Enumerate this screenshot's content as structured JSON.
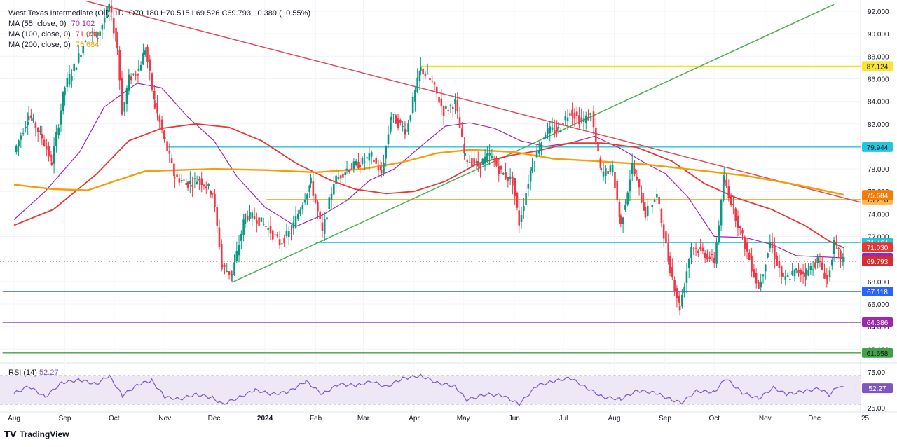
{
  "legend": {
    "symbol": "West Texas Intermediate (Oil), 1D",
    "ohlc": "O70.180 H70.515 L69.526 C69.793 −0.389 (−0.55%)",
    "ma55": {
      "label": "MA (55, close, 0)",
      "value": "70.102",
      "color": "#9c27b0"
    },
    "ma100": {
      "label": "MA (100, close, 0)",
      "value": "71.030",
      "color": "#e53935"
    },
    "ma200": {
      "label": "MA (200, close, 0)",
      "value": "75.684",
      "color": "#f59e0b"
    }
  },
  "rsi_legend": {
    "label": "RSI (14)",
    "value": "52.27"
  },
  "branding": {
    "name": "TradingView"
  },
  "chart_data": [
    {
      "type": "line",
      "title": "West Texas Intermediate (Oil)",
      "ylim": [
        61.0,
        93.0
      ],
      "y_ticks": [
        "92.000",
        "90.000",
        "88.000",
        "86.000",
        "84.000",
        "82.000",
        "80.000",
        "78.000",
        "76.000",
        "74.000",
        "72.000",
        "70.000",
        "68.000",
        "66.000",
        "64.000",
        "62.000"
      ],
      "x_ticks": [
        "Aug",
        "Sep",
        "Oct",
        "Nov",
        "Dec",
        "2024",
        "Feb",
        "Mar",
        "Apr",
        "May",
        "Jun",
        "Jul",
        "Aug",
        "Sep",
        "Oct",
        "Nov",
        "Dec",
        "25"
      ],
      "price_points": [
        [
          "2023-08-01",
          79.5
        ],
        [
          "2023-08-10",
          82.8
        ],
        [
          "2023-08-18",
          80.8
        ],
        [
          "2023-08-24",
          78.6
        ],
        [
          "2023-09-01",
          85.3
        ],
        [
          "2023-09-08",
          87.4
        ],
        [
          "2023-09-15",
          90.2
        ],
        [
          "2023-09-21",
          89.8
        ],
        [
          "2023-09-28",
          92.5
        ],
        [
          "2023-10-03",
          88.8
        ],
        [
          "2023-10-06",
          82.8
        ],
        [
          "2023-10-10",
          86.0
        ],
        [
          "2023-10-16",
          86.8
        ],
        [
          "2023-10-20",
          88.7
        ],
        [
          "2023-10-26",
          83.6
        ],
        [
          "2023-11-01",
          80.4
        ],
        [
          "2023-11-07",
          77.3
        ],
        [
          "2023-11-15",
          76.7
        ],
        [
          "2023-11-22",
          77.1
        ],
        [
          "2023-11-30",
          75.9
        ],
        [
          "2023-12-06",
          69.3
        ],
        [
          "2023-12-12",
          68.6
        ],
        [
          "2023-12-20",
          73.9
        ],
        [
          "2023-12-27",
          73.6
        ],
        [
          "2024-01-03",
          72.7
        ],
        [
          "2024-01-10",
          71.4
        ],
        [
          "2024-01-17",
          72.5
        ],
        [
          "2024-01-24",
          75.1
        ],
        [
          "2024-01-29",
          76.8
        ],
        [
          "2024-02-05",
          72.3
        ],
        [
          "2024-02-12",
          76.9
        ],
        [
          "2024-02-20",
          78.0
        ],
        [
          "2024-02-28",
          78.5
        ],
        [
          "2024-03-06",
          79.1
        ],
        [
          "2024-03-12",
          77.6
        ],
        [
          "2024-03-18",
          82.7
        ],
        [
          "2024-03-27",
          81.4
        ],
        [
          "2024-04-05",
          86.9
        ],
        [
          "2024-04-12",
          85.6
        ],
        [
          "2024-04-19",
          83.1
        ],
        [
          "2024-04-26",
          83.9
        ],
        [
          "2024-05-02",
          79.0
        ],
        [
          "2024-05-10",
          78.3
        ],
        [
          "2024-05-17",
          79.2
        ],
        [
          "2024-05-24",
          77.7
        ],
        [
          "2024-05-31",
          76.9
        ],
        [
          "2024-06-04",
          73.2
        ],
        [
          "2024-06-12",
          78.5
        ],
        [
          "2024-06-20",
          81.3
        ],
        [
          "2024-06-28",
          81.5
        ],
        [
          "2024-07-05",
          83.2
        ],
        [
          "2024-07-12",
          82.2
        ],
        [
          "2024-07-18",
          82.8
        ],
        [
          "2024-07-24",
          77.6
        ],
        [
          "2024-07-31",
          78.0
        ],
        [
          "2024-08-05",
          73.0
        ],
        [
          "2024-08-12",
          78.3
        ],
        [
          "2024-08-20",
          74.0
        ],
        [
          "2024-08-27",
          75.6
        ],
        [
          "2024-09-04",
          69.2
        ],
        [
          "2024-09-10",
          65.7
        ],
        [
          "2024-09-17",
          71.2
        ],
        [
          "2024-09-24",
          70.6
        ],
        [
          "2024-10-01",
          69.8
        ],
        [
          "2024-10-07",
          77.1
        ],
        [
          "2024-10-14",
          73.8
        ],
        [
          "2024-10-21",
          70.6
        ],
        [
          "2024-10-28",
          67.4
        ],
        [
          "2024-11-04",
          71.5
        ],
        [
          "2024-11-12",
          68.1
        ],
        [
          "2024-11-20",
          68.9
        ],
        [
          "2024-11-26",
          68.8
        ],
        [
          "2024-12-03",
          69.9
        ],
        [
          "2024-12-09",
          68.1
        ],
        [
          "2024-12-13",
          71.3
        ],
        [
          "2024-12-17",
          70.2
        ],
        [
          "2024-12-19",
          69.8
        ]
      ],
      "ma_series": [
        {
          "name": "MA (55, close, 0)",
          "color": "#9c27b0",
          "points": [
            [
              "2023-08-01",
              73.5
            ],
            [
              "2023-08-20",
              76.0
            ],
            [
              "2023-09-10",
              79.5
            ],
            [
              "2023-09-25",
              83.5
            ],
            [
              "2023-10-15",
              85.6
            ],
            [
              "2023-10-30",
              85.2
            ],
            [
              "2023-11-15",
              82.6
            ],
            [
              "2023-12-01",
              80.5
            ],
            [
              "2023-12-15",
              77.3
            ],
            [
              "2024-01-01",
              74.6
            ],
            [
              "2024-01-20",
              72.9
            ],
            [
              "2024-02-05",
              73.9
            ],
            [
              "2024-02-20",
              75.2
            ],
            [
              "2024-03-05",
              77.0
            ],
            [
              "2024-03-20",
              78.0
            ],
            [
              "2024-04-05",
              80.0
            ],
            [
              "2024-04-20",
              81.8
            ],
            [
              "2024-05-05",
              82.1
            ],
            [
              "2024-05-20",
              81.6
            ],
            [
              "2024-06-05",
              80.5
            ],
            [
              "2024-06-20",
              80.0
            ],
            [
              "2024-07-05",
              80.3
            ],
            [
              "2024-07-20",
              80.9
            ],
            [
              "2024-08-05",
              79.8
            ],
            [
              "2024-08-20",
              78.5
            ],
            [
              "2024-09-01",
              77.6
            ],
            [
              "2024-09-15",
              75.5
            ],
            [
              "2024-10-01",
              72.0
            ],
            [
              "2024-10-20",
              71.9
            ],
            [
              "2024-11-05",
              71.3
            ],
            [
              "2024-11-20",
              70.3
            ],
            [
              "2024-12-05",
              70.2
            ],
            [
              "2024-12-19",
              70.1
            ]
          ]
        },
        {
          "name": "MA (100, close, 0)",
          "color": "#e53935",
          "points": [
            [
              "2023-08-01",
              73.0
            ],
            [
              "2023-08-25",
              74.4
            ],
            [
              "2023-09-20",
              77.5
            ],
            [
              "2023-10-10",
              80.5
            ],
            [
              "2023-10-30",
              81.6
            ],
            [
              "2023-11-20",
              82.0
            ],
            [
              "2023-12-10",
              81.7
            ],
            [
              "2023-12-30",
              80.5
            ],
            [
              "2024-01-20",
              78.5
            ],
            [
              "2024-02-10",
              77.0
            ],
            [
              "2024-02-25",
              76.2
            ],
            [
              "2024-03-15",
              75.8
            ],
            [
              "2024-04-01",
              76.0
            ],
            [
              "2024-04-20",
              76.9
            ],
            [
              "2024-05-10",
              78.5
            ],
            [
              "2024-05-30",
              79.2
            ],
            [
              "2024-06-15",
              79.6
            ],
            [
              "2024-07-05",
              80.3
            ],
            [
              "2024-07-25",
              80.3
            ],
            [
              "2024-08-15",
              79.9
            ],
            [
              "2024-09-05",
              78.7
            ],
            [
              "2024-09-25",
              76.7
            ],
            [
              "2024-10-15",
              75.4
            ],
            [
              "2024-11-05",
              74.4
            ],
            [
              "2024-11-25",
              73.0
            ],
            [
              "2024-12-10",
              71.6
            ],
            [
              "2024-12-19",
              71.0
            ]
          ]
        },
        {
          "name": "MA (200, close, 0)",
          "color": "#f59e0b",
          "points": [
            [
              "2023-08-01",
              76.6
            ],
            [
              "2023-08-25",
              76.2
            ],
            [
              "2023-09-15",
              76.1
            ],
            [
              "2023-10-01",
              76.9
            ],
            [
              "2023-10-20",
              77.8
            ],
            [
              "2023-11-10",
              77.9
            ],
            [
              "2023-12-01",
              78.0
            ],
            [
              "2024-01-01",
              77.9
            ],
            [
              "2024-02-01",
              77.7
            ],
            [
              "2024-03-01",
              78.0
            ],
            [
              "2024-03-25",
              78.6
            ],
            [
              "2024-04-15",
              79.4
            ],
            [
              "2024-05-05",
              79.7
            ],
            [
              "2024-06-01",
              79.5
            ],
            [
              "2024-06-25",
              78.9
            ],
            [
              "2024-07-20",
              78.7
            ],
            [
              "2024-08-20",
              78.4
            ],
            [
              "2024-09-20",
              77.9
            ],
            [
              "2024-10-20",
              77.4
            ],
            [
              "2024-11-20",
              76.6
            ],
            [
              "2024-12-19",
              75.7
            ]
          ]
        }
      ],
      "trendlines": [
        {
          "name": "red-downtrend",
          "color": "#e04a58",
          "points": [
            [
              "2023-09-14",
              92.9
            ],
            [
              "2025-01-15",
              74.4
            ]
          ]
        },
        {
          "name": "green-uptrend",
          "color": "#4caf50",
          "points": [
            [
              "2023-12-13",
              68.0
            ],
            [
              "2024-12-13",
              92.6
            ]
          ]
        }
      ],
      "levels": [
        {
          "label": "87.124",
          "value": 87.124,
          "color": "#f2e600",
          "from": "2024-04-05",
          "label_bg": "#fbe32f",
          "label_fg": "#131722"
        },
        {
          "label": "79.944",
          "value": 79.944,
          "color": "#26c6da",
          "from": "2023-11-02",
          "label_bg": "#26c6da",
          "label_fg": "#131722"
        },
        {
          "label": "75.276",
          "value": 75.276,
          "color": "#f5a623",
          "from": "2024-01-02",
          "label_bg": "#ffb74d",
          "label_fg": "#131722"
        },
        {
          "label": "71.464",
          "value": 71.464,
          "color": "#26c6da",
          "from": "2024-02-01",
          "label_bg": "#26c6da",
          "label_fg": "#ffffff"
        },
        {
          "label": "67.118",
          "value": 67.118,
          "color": "#2962ff",
          "from": "2023-07-25",
          "label_bg": "#2962ff",
          "label_fg": "#ffffff"
        },
        {
          "label": "64.386",
          "value": 64.386,
          "color": "#8e24aa",
          "from": "2023-07-25",
          "label_bg": "#9c27b0",
          "label_fg": "#ffffff"
        },
        {
          "label": "61.658",
          "value": 61.658,
          "color": "#43a047",
          "from": "2023-07-25",
          "label_bg": "#43a047",
          "label_fg": "#131722"
        }
      ],
      "price_badges": [
        {
          "label": "75.684",
          "value": 75.684,
          "color": "#f57c00",
          "fg": "#ffffff"
        },
        {
          "label": "71.030",
          "value": 71.03,
          "color": "#e53935",
          "fg": "#ffffff"
        },
        {
          "label": "70.102",
          "value": 70.102,
          "color": "#9c27b0",
          "fg": "#ffffff"
        },
        {
          "label": "69.793",
          "value": 69.793,
          "color": "#d32f2f",
          "fg": "#ffffff"
        }
      ],
      "last_price": 69.793
    },
    {
      "type": "line",
      "title": "RSI (14)",
      "ylim": [
        25,
        75
      ],
      "y_ticks": [
        "75.00",
        "25.00"
      ],
      "bands": [
        70,
        50,
        30
      ],
      "last_value": "52.27",
      "points": [
        [
          "2023-08-01",
          45
        ],
        [
          "2023-08-10",
          55
        ],
        [
          "2023-08-20",
          40
        ],
        [
          "2023-08-30",
          60
        ],
        [
          "2023-09-10",
          64
        ],
        [
          "2023-09-20",
          58
        ],
        [
          "2023-09-28",
          70
        ],
        [
          "2023-10-06",
          42
        ],
        [
          "2023-10-16",
          58
        ],
        [
          "2023-10-24",
          63
        ],
        [
          "2023-11-01",
          40
        ],
        [
          "2023-11-10",
          37
        ],
        [
          "2023-11-20",
          44
        ],
        [
          "2023-11-30",
          39
        ],
        [
          "2023-12-06",
          30
        ],
        [
          "2023-12-15",
          38
        ],
        [
          "2023-12-26",
          50
        ],
        [
          "2024-01-05",
          44
        ],
        [
          "2024-01-15",
          47
        ],
        [
          "2024-01-26",
          62
        ],
        [
          "2024-02-05",
          44
        ],
        [
          "2024-02-15",
          58
        ],
        [
          "2024-02-26",
          56
        ],
        [
          "2024-03-06",
          62
        ],
        [
          "2024-03-15",
          54
        ],
        [
          "2024-03-25",
          66
        ],
        [
          "2024-04-05",
          70
        ],
        [
          "2024-04-15",
          60
        ],
        [
          "2024-04-26",
          55
        ],
        [
          "2024-05-03",
          36
        ],
        [
          "2024-05-15",
          44
        ],
        [
          "2024-05-25",
          42
        ],
        [
          "2024-06-04",
          30
        ],
        [
          "2024-06-15",
          56
        ],
        [
          "2024-06-25",
          62
        ],
        [
          "2024-07-05",
          67
        ],
        [
          "2024-07-15",
          53
        ],
        [
          "2024-07-25",
          40
        ],
        [
          "2024-08-05",
          37
        ],
        [
          "2024-08-15",
          49
        ],
        [
          "2024-08-26",
          46
        ],
        [
          "2024-09-05",
          36
        ],
        [
          "2024-09-11",
          32
        ],
        [
          "2024-09-20",
          48
        ],
        [
          "2024-10-01",
          47
        ],
        [
          "2024-10-08",
          66
        ],
        [
          "2024-10-18",
          46
        ],
        [
          "2024-10-28",
          38
        ],
        [
          "2024-11-06",
          53
        ],
        [
          "2024-11-14",
          44
        ],
        [
          "2024-11-25",
          48
        ],
        [
          "2024-12-04",
          52
        ],
        [
          "2024-12-10",
          43
        ],
        [
          "2024-12-16",
          56
        ],
        [
          "2024-12-19",
          52.27
        ]
      ]
    }
  ]
}
